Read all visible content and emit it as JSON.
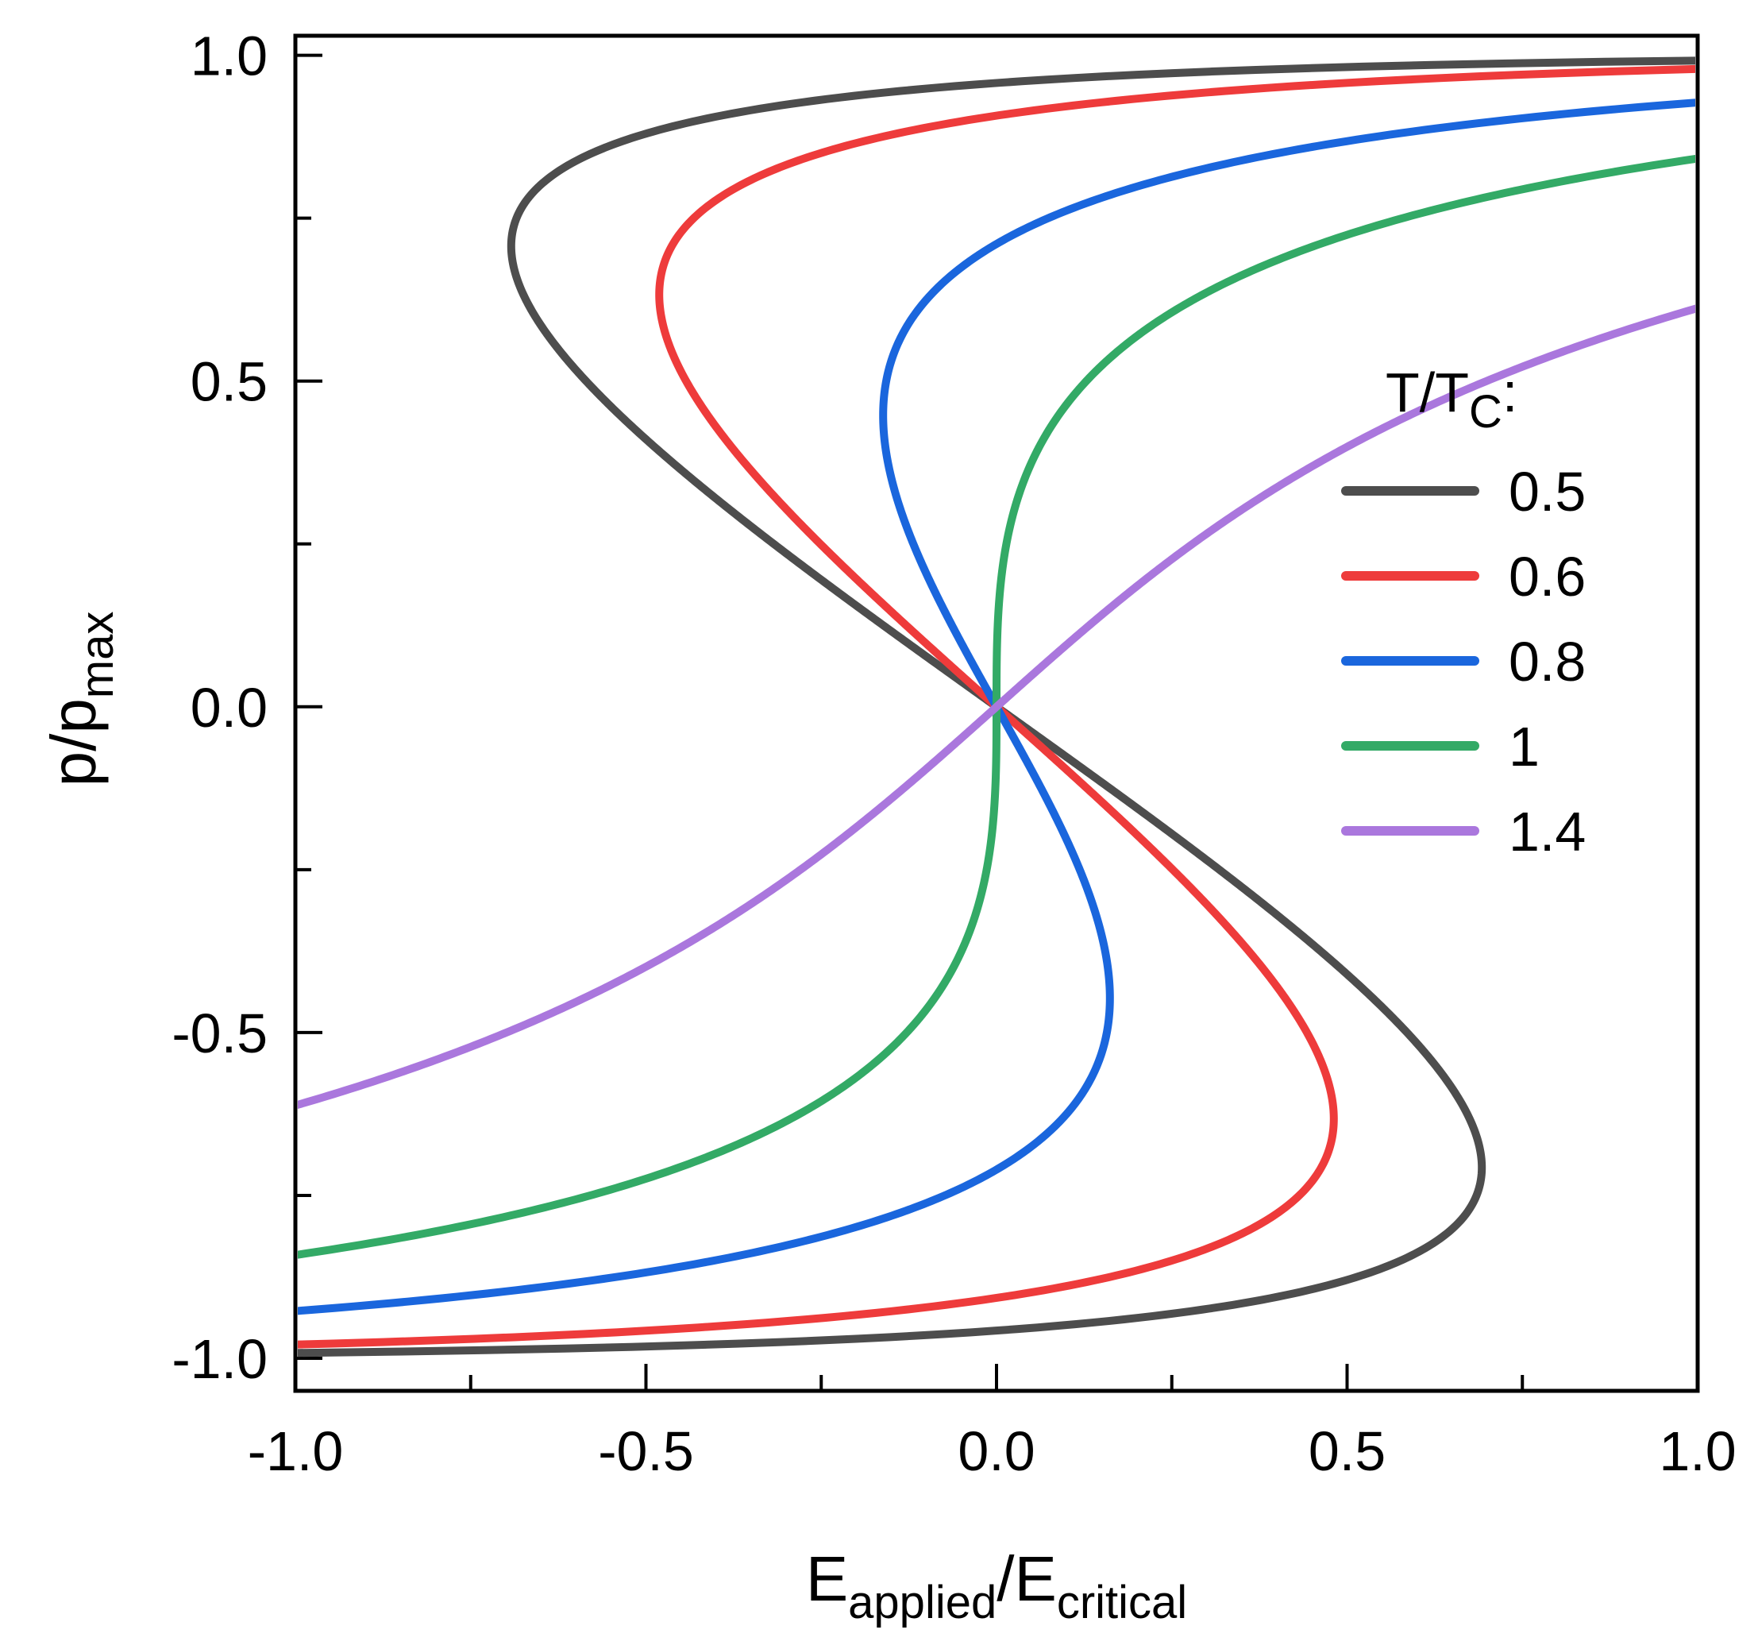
{
  "chart_data": {
    "type": "line",
    "title": "",
    "xlabel": {
      "main": "E",
      "sub1": "applied",
      "slash": "/",
      "main2": "E",
      "sub2": "critical"
    },
    "ylabel": {
      "main": "p/p",
      "sub": "max"
    },
    "xlim": [
      -1.0,
      1.0
    ],
    "ylim": [
      -1.05,
      1.03
    ],
    "x_ticks": [
      {
        "value": -1.0,
        "label": "-1.0"
      },
      {
        "value": -0.5,
        "label": "-0.5"
      },
      {
        "value": 0.0,
        "label": "0.0"
      },
      {
        "value": 0.5,
        "label": "0.5"
      },
      {
        "value": 1.0,
        "label": "1.0"
      }
    ],
    "x_minor_ticks": [
      -0.75,
      -0.25,
      0.25,
      0.75
    ],
    "y_ticks": [
      {
        "value": 1.0,
        "label": "1.0"
      },
      {
        "value": 0.5,
        "label": "0.5"
      },
      {
        "value": 0.0,
        "label": "0.0"
      },
      {
        "value": -0.5,
        "label": "-0.5"
      },
      {
        "value": -1.0,
        "label": "-1.0"
      }
    ],
    "y_minor_ticks": [
      0.75,
      0.25,
      -0.25,
      -0.75
    ],
    "grid": false,
    "legend": {
      "title_main": "T/T",
      "title_sub": "C",
      "title_suffix": ":",
      "placement": "right-center"
    },
    "series": [
      {
        "name": "0.5",
        "t": 0.5,
        "color": "#4d4d4d"
      },
      {
        "name": "0.6",
        "t": 0.6,
        "color": "#ee3b3b"
      },
      {
        "name": "0.8",
        "t": 0.8,
        "color": "#1a66dd"
      },
      {
        "name": "1",
        "t": 1.0,
        "color": "#33aa66"
      },
      {
        "name": "1.4",
        "t": 1.4,
        "color": "#aa77dd"
      }
    ],
    "model": "E/E_critical = (3*sqrt(3)/2) * (T/Tc * atanh(p) - p), p = p/p_max in (-0.995, 0.995)"
  }
}
